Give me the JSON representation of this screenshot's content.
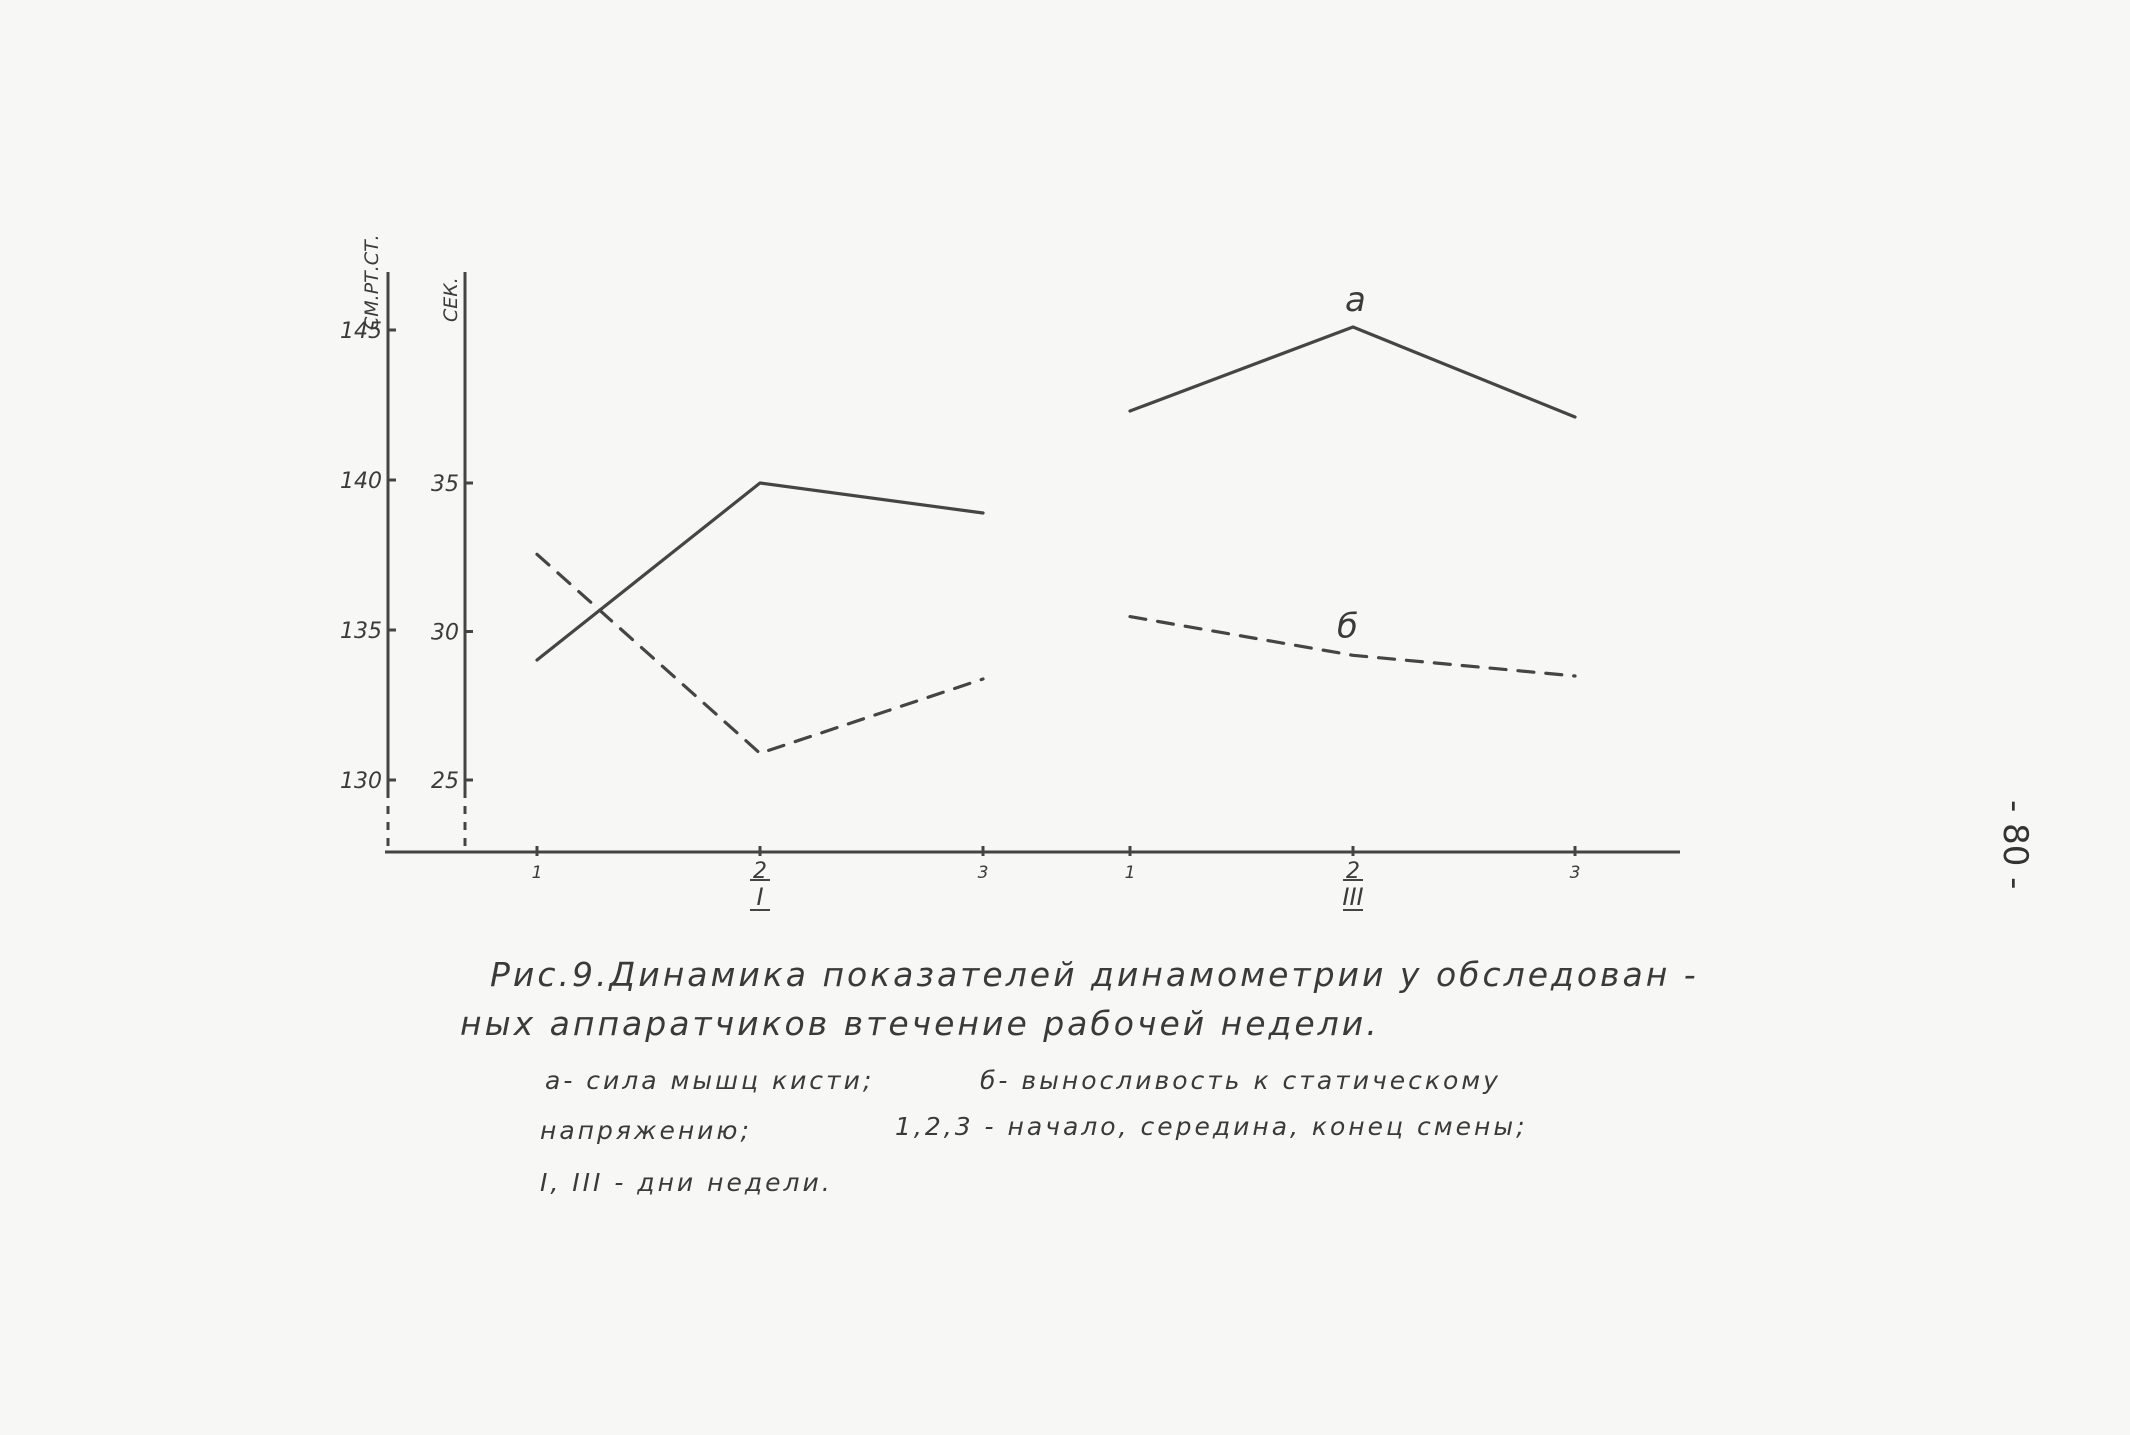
{
  "chart_data": {
    "type": "line",
    "categories": [
      "1",
      "2",
      "3",
      "1",
      "2",
      "3"
    ],
    "day_labels": [
      "I",
      "III"
    ],
    "left_axis": {
      "unit_label": "СМ.РТ.СТ.",
      "ticks": [
        "145",
        "140",
        "135",
        "130"
      ],
      "ylim": [
        130,
        145
      ]
    },
    "right_axis": {
      "unit_label": "СЕК.",
      "ticks": [
        "35",
        "30",
        "25"
      ],
      "ylim": [
        25,
        35
      ]
    },
    "series": [
      {
        "name": "а",
        "axis": "left",
        "style": "solid",
        "segments": [
          {
            "x": [
              1,
              2,
              3
            ],
            "y": [
              134.0,
              139.9,
              138.9
            ]
          },
          {
            "x": [
              4,
              5,
              6
            ],
            "y": [
              142.3,
              145.1,
              142.1
            ]
          }
        ]
      },
      {
        "name": "б",
        "axis": "right",
        "style": "dashed",
        "segments": [
          {
            "x": [
              1,
              2,
              3
            ],
            "y": [
              32.6,
              25.9,
              28.4
            ]
          },
          {
            "x": [
              4,
              5,
              6
            ],
            "y": [
              30.5,
              29.2,
              28.5
            ]
          }
        ]
      }
    ]
  },
  "caption": {
    "title_line1": "Рис.9.Динамика показателей динамометрии у обследован -",
    "title_line2": "ных аппаратчиков втечение рабочей недели.",
    "legend_line1_a": "а- сила мышц кисти;",
    "legend_line1_b": "б- выносливость к статическому",
    "legend_line2_a": "напряжению;",
    "legend_line2_b": "1,2,3 - начало, середина, конец смены;",
    "legend_line3": "I, III - дни недели."
  },
  "page_number": "- 80 -"
}
